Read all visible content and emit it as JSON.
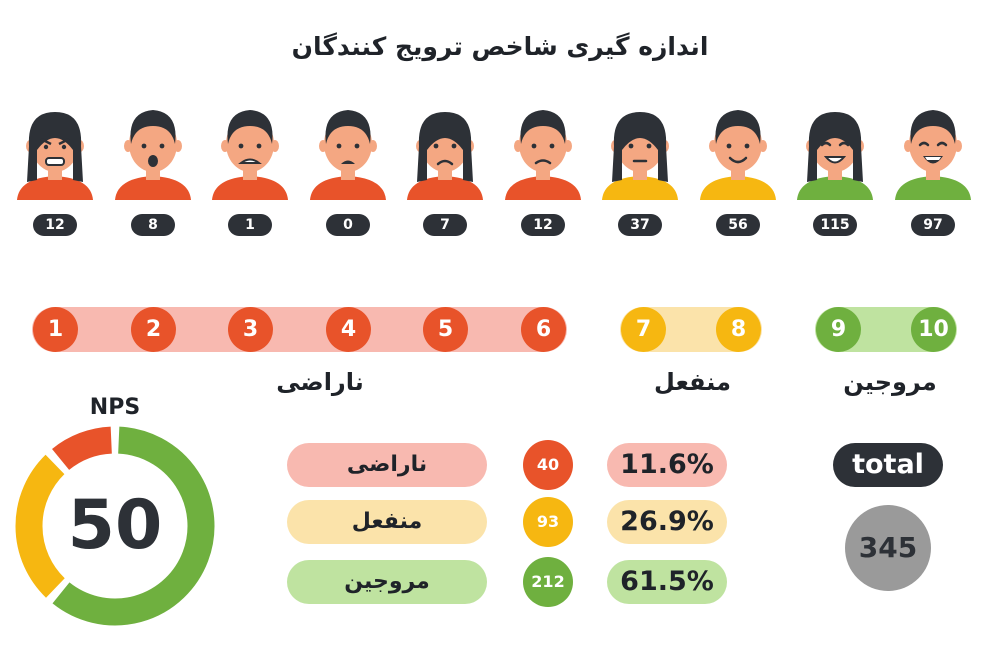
{
  "title": "اندازه گیری شاخص ترویج کنندگان",
  "faces": [
    {
      "score": 1,
      "count": "12",
      "shirt": "#e8532a",
      "hair": "long",
      "mood": "angry"
    },
    {
      "score": 2,
      "count": "8",
      "shirt": "#e8532a",
      "hair": "short",
      "mood": "shock"
    },
    {
      "score": 3,
      "count": "1",
      "shirt": "#e8532a",
      "hair": "short",
      "mood": "fear"
    },
    {
      "score": 4,
      "count": "0",
      "shirt": "#e8532a",
      "hair": "short",
      "mood": "upset"
    },
    {
      "score": 5,
      "count": "7",
      "shirt": "#e8532a",
      "hair": "long",
      "mood": "sad"
    },
    {
      "score": 6,
      "count": "12",
      "shirt": "#e8532a",
      "hair": "short",
      "mood": "frown"
    },
    {
      "score": 7,
      "count": "37",
      "shirt": "#f6b711",
      "hair": "long",
      "mood": "neutral"
    },
    {
      "score": 8,
      "count": "56",
      "shirt": "#f6b711",
      "hair": "short",
      "mood": "smile"
    },
    {
      "score": 9,
      "count": "115",
      "shirt": "#6fb03f",
      "hair": "long",
      "mood": "happy"
    },
    {
      "score": 10,
      "count": "97",
      "shirt": "#6fb03f",
      "hair": "short",
      "mood": "laugh"
    }
  ],
  "scores": [
    "1",
    "2",
    "3",
    "4",
    "5",
    "6",
    "7",
    "8",
    "9",
    "10"
  ],
  "groups": {
    "detractors": "ناراضی",
    "passives": "منفعل",
    "promoters": "مروجین"
  },
  "nps": {
    "label": "NPS",
    "value": "50"
  },
  "summary": [
    {
      "label": "ناراضی",
      "count": "40",
      "percent": "11.6%"
    },
    {
      "label": "منفعل",
      "count": "93",
      "percent": "26.9%"
    },
    {
      "label": "مروجین",
      "count": "212",
      "percent": "61.5%"
    }
  ],
  "total": {
    "label": "total",
    "value": "345"
  },
  "colors": {
    "detractor": "#e8532a",
    "detractor_light": "#f8b9b0",
    "passive": "#f6b711",
    "passive_light": "#fbe3aa",
    "promoter": "#6fb03f",
    "promoter_light": "#bfe3a0",
    "dark": "#2d3137",
    "gray": "#9a9a9a",
    "skin": "#f4a782"
  },
  "chart_data": {
    "type": "bar",
    "categories": [
      "1",
      "2",
      "3",
      "4",
      "5",
      "6",
      "7",
      "8",
      "9",
      "10"
    ],
    "values": [
      12,
      8,
      1,
      0,
      7,
      12,
      37,
      56,
      115,
      97
    ],
    "groups": [
      {
        "name": "ناراضی",
        "scores": [
          1,
          2,
          3,
          4,
          5,
          6
        ],
        "count": 40,
        "percent": 11.6
      },
      {
        "name": "منفعل",
        "scores": [
          7,
          8
        ],
        "count": 93,
        "percent": 26.9
      },
      {
        "name": "مروجین",
        "scores": [
          9,
          10
        ],
        "count": 212,
        "percent": 61.5
      }
    ],
    "total": 345,
    "nps": 50,
    "title": "اندازه گیری شاخص ترویج کنندگان"
  }
}
